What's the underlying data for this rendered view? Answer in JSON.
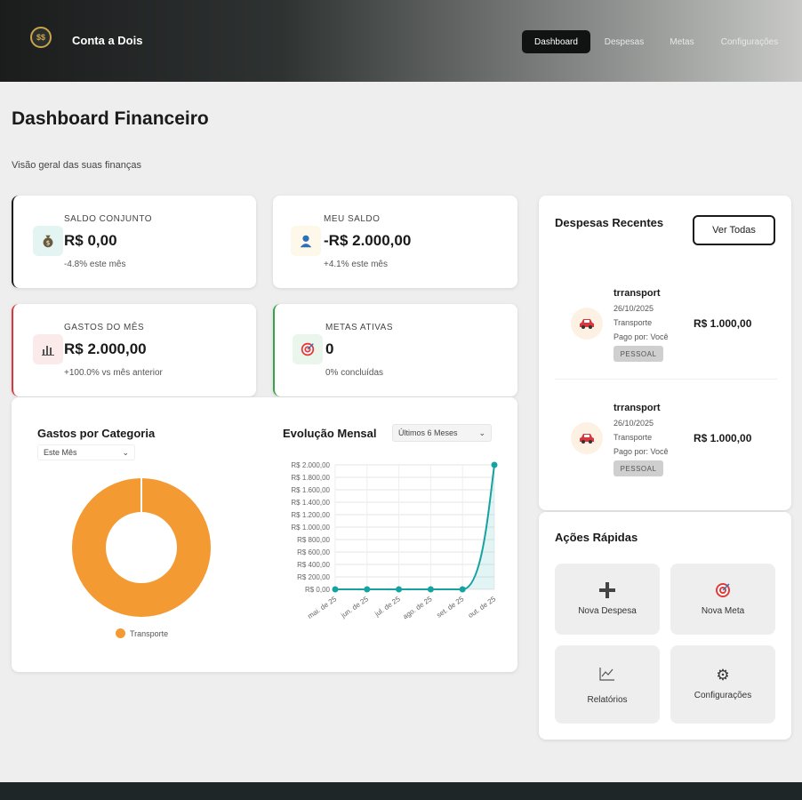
{
  "header": {
    "logo_text": "$$",
    "brand": "Conta a Dois",
    "nav": [
      "Dashboard",
      "Despesas",
      "Metas",
      "Configurações"
    ]
  },
  "page": {
    "title": "Dashboard Financeiro",
    "subtitle": "Visão geral das suas finanças"
  },
  "stats": [
    {
      "label": "SALDO CONJUNTO",
      "value": "R$ 0,00",
      "note": "-4.8% este mês",
      "icon": "money-bag-icon",
      "accent": "#1a1a1a"
    },
    {
      "label": "MEU SALDO",
      "value": "-R$ 2.000,00",
      "note": "+4.1% este mês",
      "icon": "user-icon",
      "accent": "#ffffff"
    },
    {
      "label": "GASTOS DO MÊS",
      "value": "R$ 2.000,00",
      "note": "+100.0% vs mês anterior",
      "icon": "bar-chart-icon",
      "accent": "#d9363e"
    },
    {
      "label": "METAS ATIVAS",
      "value": "0",
      "note": "0% concluídas",
      "icon": "target-icon",
      "accent": "#3aa14a"
    }
  ],
  "category_chart": {
    "title": "Gastos por Categoria",
    "filter": "Este Mês",
    "legend": [
      "Transporte"
    ]
  },
  "monthly_chart": {
    "title": "Evolução Mensal",
    "filter": "Últimos 6 Meses"
  },
  "chart_data": [
    {
      "type": "pie",
      "title": "Gastos por Categoria",
      "categories": [
        "Transporte"
      ],
      "values": [
        2000
      ],
      "colors": [
        "#f39a33"
      ]
    },
    {
      "type": "line",
      "title": "Evolução Mensal",
      "x": [
        "mai. de 25",
        "jun. de 25",
        "jul. de 25",
        "ago. de 25",
        "set. de 25",
        "out. de 25"
      ],
      "series": [
        {
          "values": [
            0,
            0,
            0,
            0,
            0,
            2000
          ]
        }
      ],
      "ylim": [
        0,
        2000
      ],
      "yticks": [
        "R$ 0,00",
        "R$ 200,00",
        "R$ 400,00",
        "R$ 600,00",
        "R$ 800,00",
        "R$ 1.000,00",
        "R$ 1.200,00",
        "R$ 1.400,00",
        "R$ 1.600,00",
        "R$ 1.800,00",
        "R$ 2.000,00"
      ],
      "color": "#17a2a2",
      "grid": true
    }
  ],
  "recent": {
    "title": "Despesas Recentes",
    "view_all": "Ver Todas",
    "items": [
      {
        "name": "trransport",
        "date": "26/10/2025",
        "category": "Transporte",
        "paid_by": "Pago por: Você",
        "badge": "PESSOAL",
        "amount": "R$ 1.000,00",
        "icon": "car-icon"
      },
      {
        "name": "trransport",
        "date": "26/10/2025",
        "category": "Transporte",
        "paid_by": "Pago por: Você",
        "badge": "PESSOAL",
        "amount": "R$ 1.000,00",
        "icon": "car-icon"
      }
    ]
  },
  "quick_actions": {
    "title": "Ações Rápidas",
    "items": [
      {
        "label": "Nova Despesa",
        "icon": "plus-icon"
      },
      {
        "label": "Nova Meta",
        "icon": "target-icon"
      },
      {
        "label": "Relatórios",
        "icon": "chart-line-icon"
      },
      {
        "label": "Configurações",
        "icon": "gear-icon"
      }
    ]
  },
  "colors": {
    "teal": "#17a2a2",
    "orange": "#f39a33",
    "red_accent": "#d9363e",
    "green_accent": "#3aa14a"
  }
}
